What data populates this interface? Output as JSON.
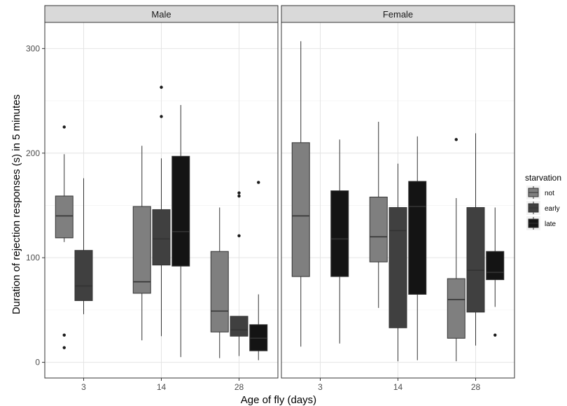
{
  "chart_data": {
    "type": "boxplot",
    "xlabel": "Age of fly (days)",
    "ylabel": "Duration of rejection responses (s) in 5 minutes",
    "ylim": [
      -15,
      325
    ],
    "yticks": [
      0,
      100,
      200,
      300
    ],
    "categories": [
      "3",
      "14",
      "28"
    ],
    "grid": true,
    "legend": {
      "title": "starvation",
      "position": "right",
      "entries": [
        {
          "name": "not",
          "color": "#7f7f7f"
        },
        {
          "name": "early",
          "color": "#404040"
        },
        {
          "name": "late",
          "color": "#141414"
        }
      ]
    },
    "panels": [
      {
        "name": "Male",
        "groups": [
          {
            "age": "3",
            "starvation": "not",
            "whisker_low": 115,
            "q1": 119,
            "median": 140,
            "q3": 159,
            "whisker_high": 199,
            "outliers": [
              225,
              26,
              14
            ]
          },
          {
            "age": "3",
            "starvation": "early",
            "whisker_low": 46,
            "q1": 59,
            "median": 73,
            "q3": 107,
            "whisker_high": 176,
            "outliers": []
          },
          {
            "age": "14",
            "starvation": "not",
            "whisker_low": 21,
            "q1": 66,
            "median": 77,
            "q3": 149,
            "whisker_high": 207,
            "outliers": []
          },
          {
            "age": "14",
            "starvation": "early",
            "whisker_low": 25,
            "q1": 93,
            "median": 118,
            "q3": 146,
            "whisker_high": 195,
            "outliers": [
              235,
              263
            ]
          },
          {
            "age": "14",
            "starvation": "late",
            "whisker_low": 5,
            "q1": 92,
            "median": 125,
            "q3": 197,
            "whisker_high": 246,
            "outliers": []
          },
          {
            "age": "28",
            "starvation": "not",
            "whisker_low": 4,
            "q1": 29,
            "median": 49,
            "q3": 106,
            "whisker_high": 148,
            "outliers": []
          },
          {
            "age": "28",
            "starvation": "early",
            "whisker_low": 6,
            "q1": 25,
            "median": 31,
            "q3": 44,
            "whisker_high": 44,
            "outliers": [
              121,
              159,
              162
            ]
          },
          {
            "age": "28",
            "starvation": "late",
            "whisker_low": 2,
            "q1": 11,
            "median": 23,
            "q3": 36,
            "whisker_high": 65,
            "outliers": [
              172
            ]
          }
        ]
      },
      {
        "name": "Female",
        "groups": [
          {
            "age": "3",
            "starvation": "not",
            "whisker_low": 15,
            "q1": 82,
            "median": 140,
            "q3": 210,
            "whisker_high": 307,
            "outliers": []
          },
          {
            "age": "3",
            "starvation": "late",
            "whisker_low": 18,
            "q1": 82,
            "median": 118,
            "q3": 164,
            "whisker_high": 213,
            "outliers": []
          },
          {
            "age": "14",
            "starvation": "not",
            "whisker_low": 52,
            "q1": 96,
            "median": 120,
            "q3": 158,
            "whisker_high": 230,
            "outliers": []
          },
          {
            "age": "14",
            "starvation": "early",
            "whisker_low": 1,
            "q1": 33,
            "median": 126,
            "q3": 148,
            "whisker_high": 190,
            "outliers": []
          },
          {
            "age": "14",
            "starvation": "late",
            "whisker_low": 2,
            "q1": 65,
            "median": 149,
            "q3": 173,
            "whisker_high": 216,
            "outliers": []
          },
          {
            "age": "28",
            "starvation": "not",
            "whisker_low": 1,
            "q1": 23,
            "median": 60,
            "q3": 80,
            "whisker_high": 157,
            "outliers": [
              213
            ]
          },
          {
            "age": "28",
            "starvation": "early",
            "whisker_low": 16,
            "q1": 48,
            "median": 88,
            "q3": 148,
            "whisker_high": 219,
            "outliers": []
          },
          {
            "age": "28",
            "starvation": "late",
            "whisker_low": 53,
            "q1": 79,
            "median": 86,
            "q3": 106,
            "whisker_high": 148,
            "outliers": [
              26
            ]
          }
        ]
      }
    ]
  }
}
